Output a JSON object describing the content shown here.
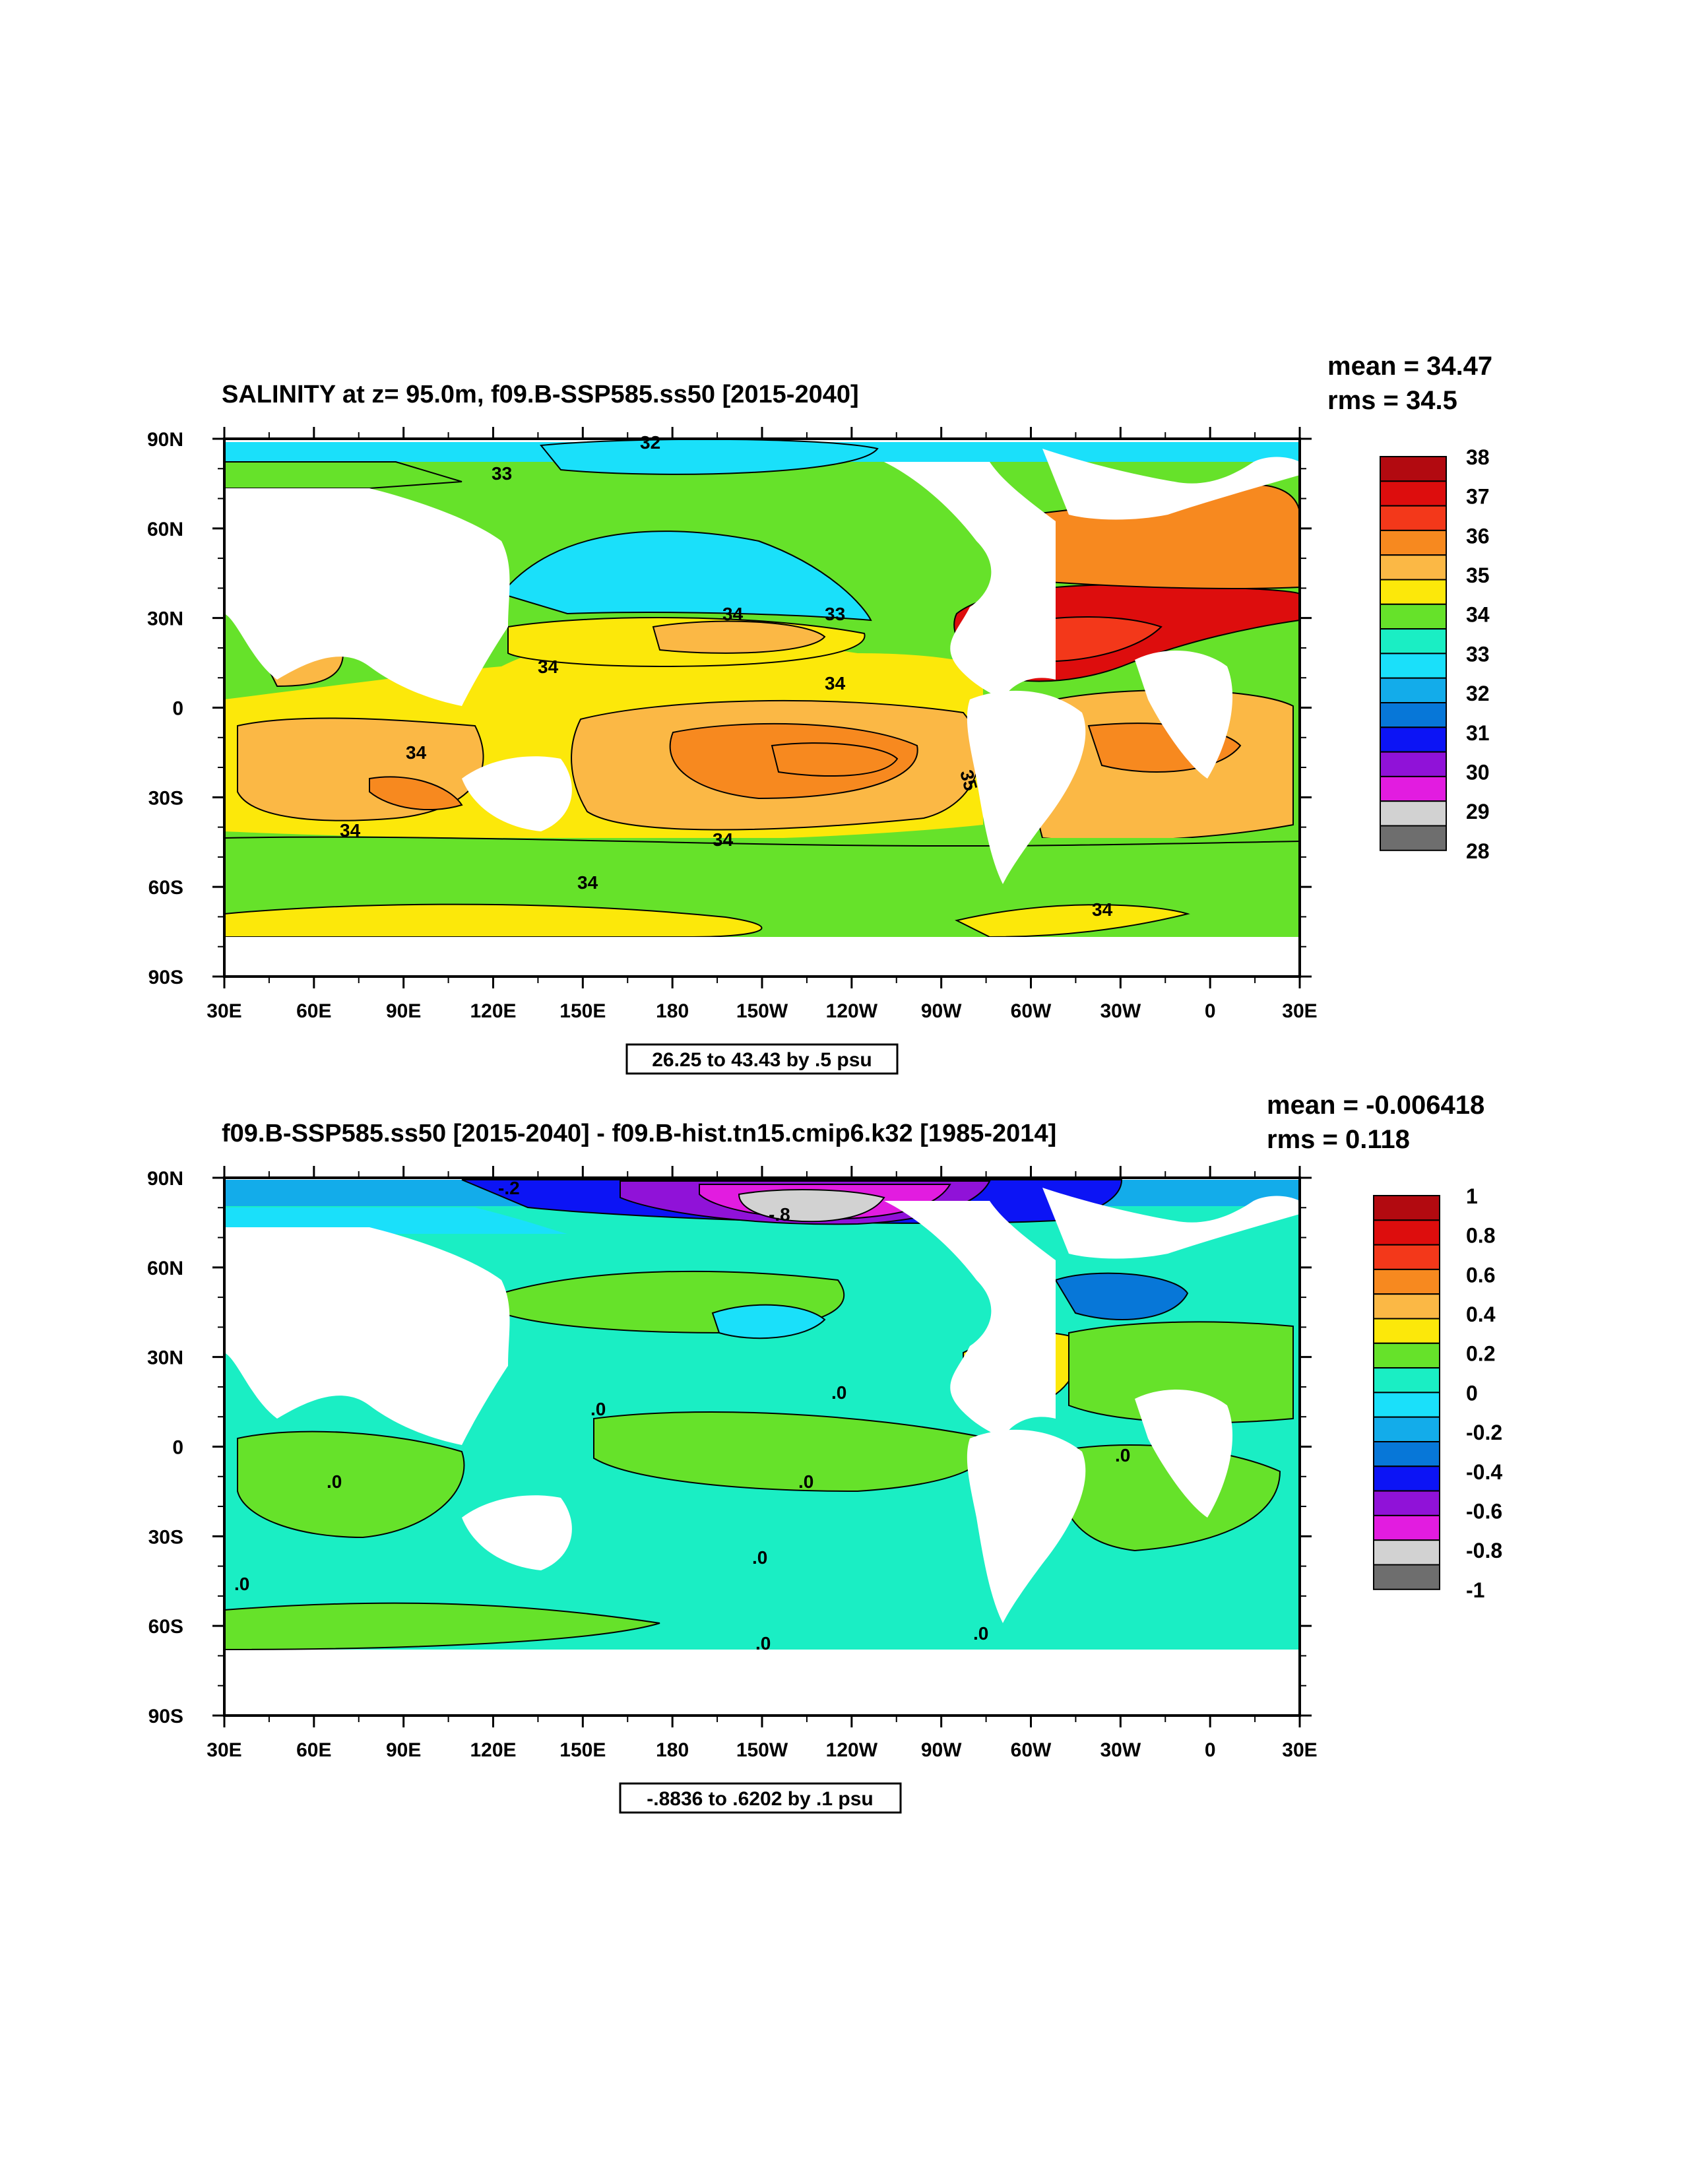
{
  "chart_data": [
    {
      "type": "contour-map",
      "title": "SALINITY at z=  95.0m, f09.B-SSP585.ss50 [2015-2040]",
      "stats": {
        "mean": "mean = 34.47",
        "rms": "rms = 34.5"
      },
      "x_ticks": [
        "30E",
        "60E",
        "90E",
        "120E",
        "150E",
        "180",
        "150W",
        "120W",
        "90W",
        "60W",
        "30W",
        "0",
        "30E"
      ],
      "y_ticks": [
        "90N",
        "60N",
        "30N",
        "0",
        "30S",
        "60S",
        "90S"
      ],
      "info_label": "26.25 to 43.43 by .5 psu",
      "colorbar": {
        "levels": [
          "38",
          "37",
          "36",
          "35",
          "34",
          "33",
          "32",
          "31",
          "30",
          "29",
          "28"
        ],
        "colors": [
          "#b20a10",
          "#dd0d0d",
          "#f3381a",
          "#f7891f",
          "#fbb845",
          "#fce80a",
          "#66e22a",
          "#1aeec4",
          "#1ae0fa",
          "#13acea",
          "#0777d8",
          "#0c14f5",
          "#9012d8",
          "#e21ce0",
          "#d2d2d2",
          "#6e6e6e"
        ]
      },
      "contour_labels": [
        "32",
        "33",
        "34",
        "33",
        "34",
        "34",
        "34",
        "35",
        "34",
        "34",
        "34",
        "34"
      ]
    },
    {
      "type": "contour-map",
      "title": "f09.B-SSP585.ss50 [2015-2040] - f09.B-hist.tn15.cmip6.k32 [1985-2014]",
      "stats": {
        "mean": "mean = -0.006418",
        "rms": "rms = 0.118"
      },
      "x_ticks": [
        "30E",
        "60E",
        "90E",
        "120E",
        "150E",
        "180",
        "150W",
        "120W",
        "90W",
        "60W",
        "30W",
        "0",
        "30E"
      ],
      "y_ticks": [
        "90N",
        "60N",
        "30N",
        "0",
        "30S",
        "60S",
        "90S"
      ],
      "info_label": "-.8836 to .6202 by .1 psu",
      "colorbar": {
        "levels": [
          "1",
          "0.8",
          "0.6",
          "0.4",
          "0.2",
          "0",
          "-0.2",
          "-0.4",
          "-0.6",
          "-0.8",
          "-1"
        ],
        "colors": [
          "#b20a10",
          "#dd0d0d",
          "#f3381a",
          "#f7891f",
          "#fbb845",
          "#fce80a",
          "#66e22a",
          "#1aeec4",
          "#1ae0fa",
          "#13acea",
          "#0777d8",
          "#0c14f5",
          "#9012d8",
          "#e21ce0",
          "#d2d2d2",
          "#6e6e6e"
        ]
      },
      "contour_labels": [
        ".0",
        ".0",
        ".0",
        ".0",
        ".0",
        ".0",
        ".0",
        ".0",
        ".0",
        "-.2",
        "-.8"
      ]
    }
  ]
}
